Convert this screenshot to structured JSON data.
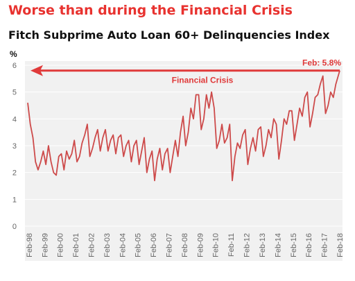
{
  "header": {
    "headline": "Worse than during the Financial Crisis",
    "subtitle": "Fitch Subprime Auto Loan 60+ Delinquencies Index"
  },
  "colors": {
    "headline": "#e8322f",
    "line": "#cd4a4a",
    "arrow": "#e03a3a",
    "plot_background": "#f1f1f1",
    "grid": "#ffffff",
    "axis_text": "#666666"
  },
  "chart_data": {
    "type": "line",
    "title": "Fitch Subprime Auto Loan 60+ Delinquencies Index",
    "ylabel": "%",
    "xlabel": "",
    "ylim": [
      0,
      6
    ],
    "yticks": [
      0,
      1,
      2,
      3,
      4,
      5,
      6
    ],
    "grid": true,
    "x_range": [
      "1998-01",
      "2018-02"
    ],
    "xtick_labels": [
      "Feb-98",
      "Feb-99",
      "Feb-00",
      "Feb-01",
      "Feb-02",
      "Feb-03",
      "Feb-04",
      "Feb-05",
      "Feb-06",
      "Feb-07",
      "Feb-08",
      "Feb-09",
      "Feb-10",
      "Feb-11",
      "Feb-12",
      "Feb-13",
      "Feb-14",
      "Feb-15",
      "Feb-16",
      "Feb-17",
      "Feb-18"
    ],
    "series": [
      {
        "points": [
          [
            "1998-01",
            4.6
          ],
          [
            "1998-03",
            3.8
          ],
          [
            "1998-05",
            3.3
          ],
          [
            "1998-07",
            2.4
          ],
          [
            "1998-09",
            2.1
          ],
          [
            "1998-11",
            2.4
          ],
          [
            "1999-01",
            2.8
          ],
          [
            "1999-03",
            2.3
          ],
          [
            "1999-05",
            3.0
          ],
          [
            "1999-07",
            2.4
          ],
          [
            "1999-09",
            2.0
          ],
          [
            "1999-11",
            1.9
          ],
          [
            "2000-01",
            2.6
          ],
          [
            "2000-03",
            2.7
          ],
          [
            "2000-05",
            2.1
          ],
          [
            "2000-07",
            2.8
          ],
          [
            "2000-09",
            2.5
          ],
          [
            "2000-11",
            2.7
          ],
          [
            "2001-01",
            3.2
          ],
          [
            "2001-03",
            2.4
          ],
          [
            "2001-05",
            2.6
          ],
          [
            "2001-07",
            3.1
          ],
          [
            "2001-09",
            3.4
          ],
          [
            "2001-11",
            3.8
          ],
          [
            "2002-01",
            2.6
          ],
          [
            "2002-03",
            2.9
          ],
          [
            "2002-05",
            3.3
          ],
          [
            "2002-07",
            3.6
          ],
          [
            "2002-09",
            2.8
          ],
          [
            "2002-11",
            3.3
          ],
          [
            "2003-01",
            3.6
          ],
          [
            "2003-03",
            2.8
          ],
          [
            "2003-05",
            3.2
          ],
          [
            "2003-07",
            3.4
          ],
          [
            "2003-09",
            2.7
          ],
          [
            "2003-11",
            3.3
          ],
          [
            "2004-01",
            3.4
          ],
          [
            "2004-03",
            2.6
          ],
          [
            "2004-05",
            3.0
          ],
          [
            "2004-07",
            3.2
          ],
          [
            "2004-09",
            2.4
          ],
          [
            "2004-11",
            3.0
          ],
          [
            "2005-01",
            3.2
          ],
          [
            "2005-03",
            2.3
          ],
          [
            "2005-05",
            2.8
          ],
          [
            "2005-07",
            3.3
          ],
          [
            "2005-09",
            2.0
          ],
          [
            "2005-11",
            2.5
          ],
          [
            "2006-01",
            2.8
          ],
          [
            "2006-03",
            1.7
          ],
          [
            "2006-05",
            2.5
          ],
          [
            "2006-07",
            2.9
          ],
          [
            "2006-09",
            2.1
          ],
          [
            "2006-11",
            2.7
          ],
          [
            "2007-01",
            2.9
          ],
          [
            "2007-03",
            2.0
          ],
          [
            "2007-05",
            2.6
          ],
          [
            "2007-07",
            3.2
          ],
          [
            "2007-09",
            2.6
          ],
          [
            "2007-11",
            3.5
          ],
          [
            "2008-01",
            4.1
          ],
          [
            "2008-03",
            3.0
          ],
          [
            "2008-05",
            3.5
          ],
          [
            "2008-07",
            4.4
          ],
          [
            "2008-09",
            4.0
          ],
          [
            "2008-11",
            4.9
          ],
          [
            "2009-01",
            4.9
          ],
          [
            "2009-03",
            3.6
          ],
          [
            "2009-05",
            4.0
          ],
          [
            "2009-07",
            4.9
          ],
          [
            "2009-09",
            4.4
          ],
          [
            "2009-11",
            5.0
          ],
          [
            "2010-01",
            4.4
          ],
          [
            "2010-03",
            2.9
          ],
          [
            "2010-05",
            3.2
          ],
          [
            "2010-07",
            3.8
          ],
          [
            "2010-09",
            3.1
          ],
          [
            "2010-11",
            3.3
          ],
          [
            "2011-01",
            3.8
          ],
          [
            "2011-03",
            1.7
          ],
          [
            "2011-05",
            2.6
          ],
          [
            "2011-07",
            3.1
          ],
          [
            "2011-09",
            2.9
          ],
          [
            "2011-11",
            3.4
          ],
          [
            "2012-01",
            3.6
          ],
          [
            "2012-03",
            2.3
          ],
          [
            "2012-05",
            2.9
          ],
          [
            "2012-07",
            3.3
          ],
          [
            "2012-09",
            2.8
          ],
          [
            "2012-11",
            3.6
          ],
          [
            "2013-01",
            3.7
          ],
          [
            "2013-03",
            2.6
          ],
          [
            "2013-05",
            3.0
          ],
          [
            "2013-07",
            3.6
          ],
          [
            "2013-09",
            3.3
          ],
          [
            "2013-11",
            4.0
          ],
          [
            "2014-01",
            3.8
          ],
          [
            "2014-03",
            2.5
          ],
          [
            "2014-05",
            3.2
          ],
          [
            "2014-07",
            4.0
          ],
          [
            "2014-09",
            3.8
          ],
          [
            "2014-11",
            4.3
          ],
          [
            "2015-01",
            4.3
          ],
          [
            "2015-03",
            3.2
          ],
          [
            "2015-05",
            3.8
          ],
          [
            "2015-07",
            4.4
          ],
          [
            "2015-09",
            4.1
          ],
          [
            "2015-11",
            4.8
          ],
          [
            "2016-01",
            5.0
          ],
          [
            "2016-03",
            3.7
          ],
          [
            "2016-05",
            4.2
          ],
          [
            "2016-07",
            4.8
          ],
          [
            "2016-09",
            4.9
          ],
          [
            "2016-11",
            5.3
          ],
          [
            "2017-01",
            5.6
          ],
          [
            "2017-03",
            4.2
          ],
          [
            "2017-05",
            4.5
          ],
          [
            "2017-07",
            5.0
          ],
          [
            "2017-09",
            4.8
          ],
          [
            "2017-11",
            5.3
          ],
          [
            "2018-02",
            5.8
          ]
        ]
      }
    ],
    "annotations": {
      "latest_label": "Feb: 5.8%",
      "latest_value": 5.8,
      "crisis_label": "Financial Crisis"
    }
  }
}
